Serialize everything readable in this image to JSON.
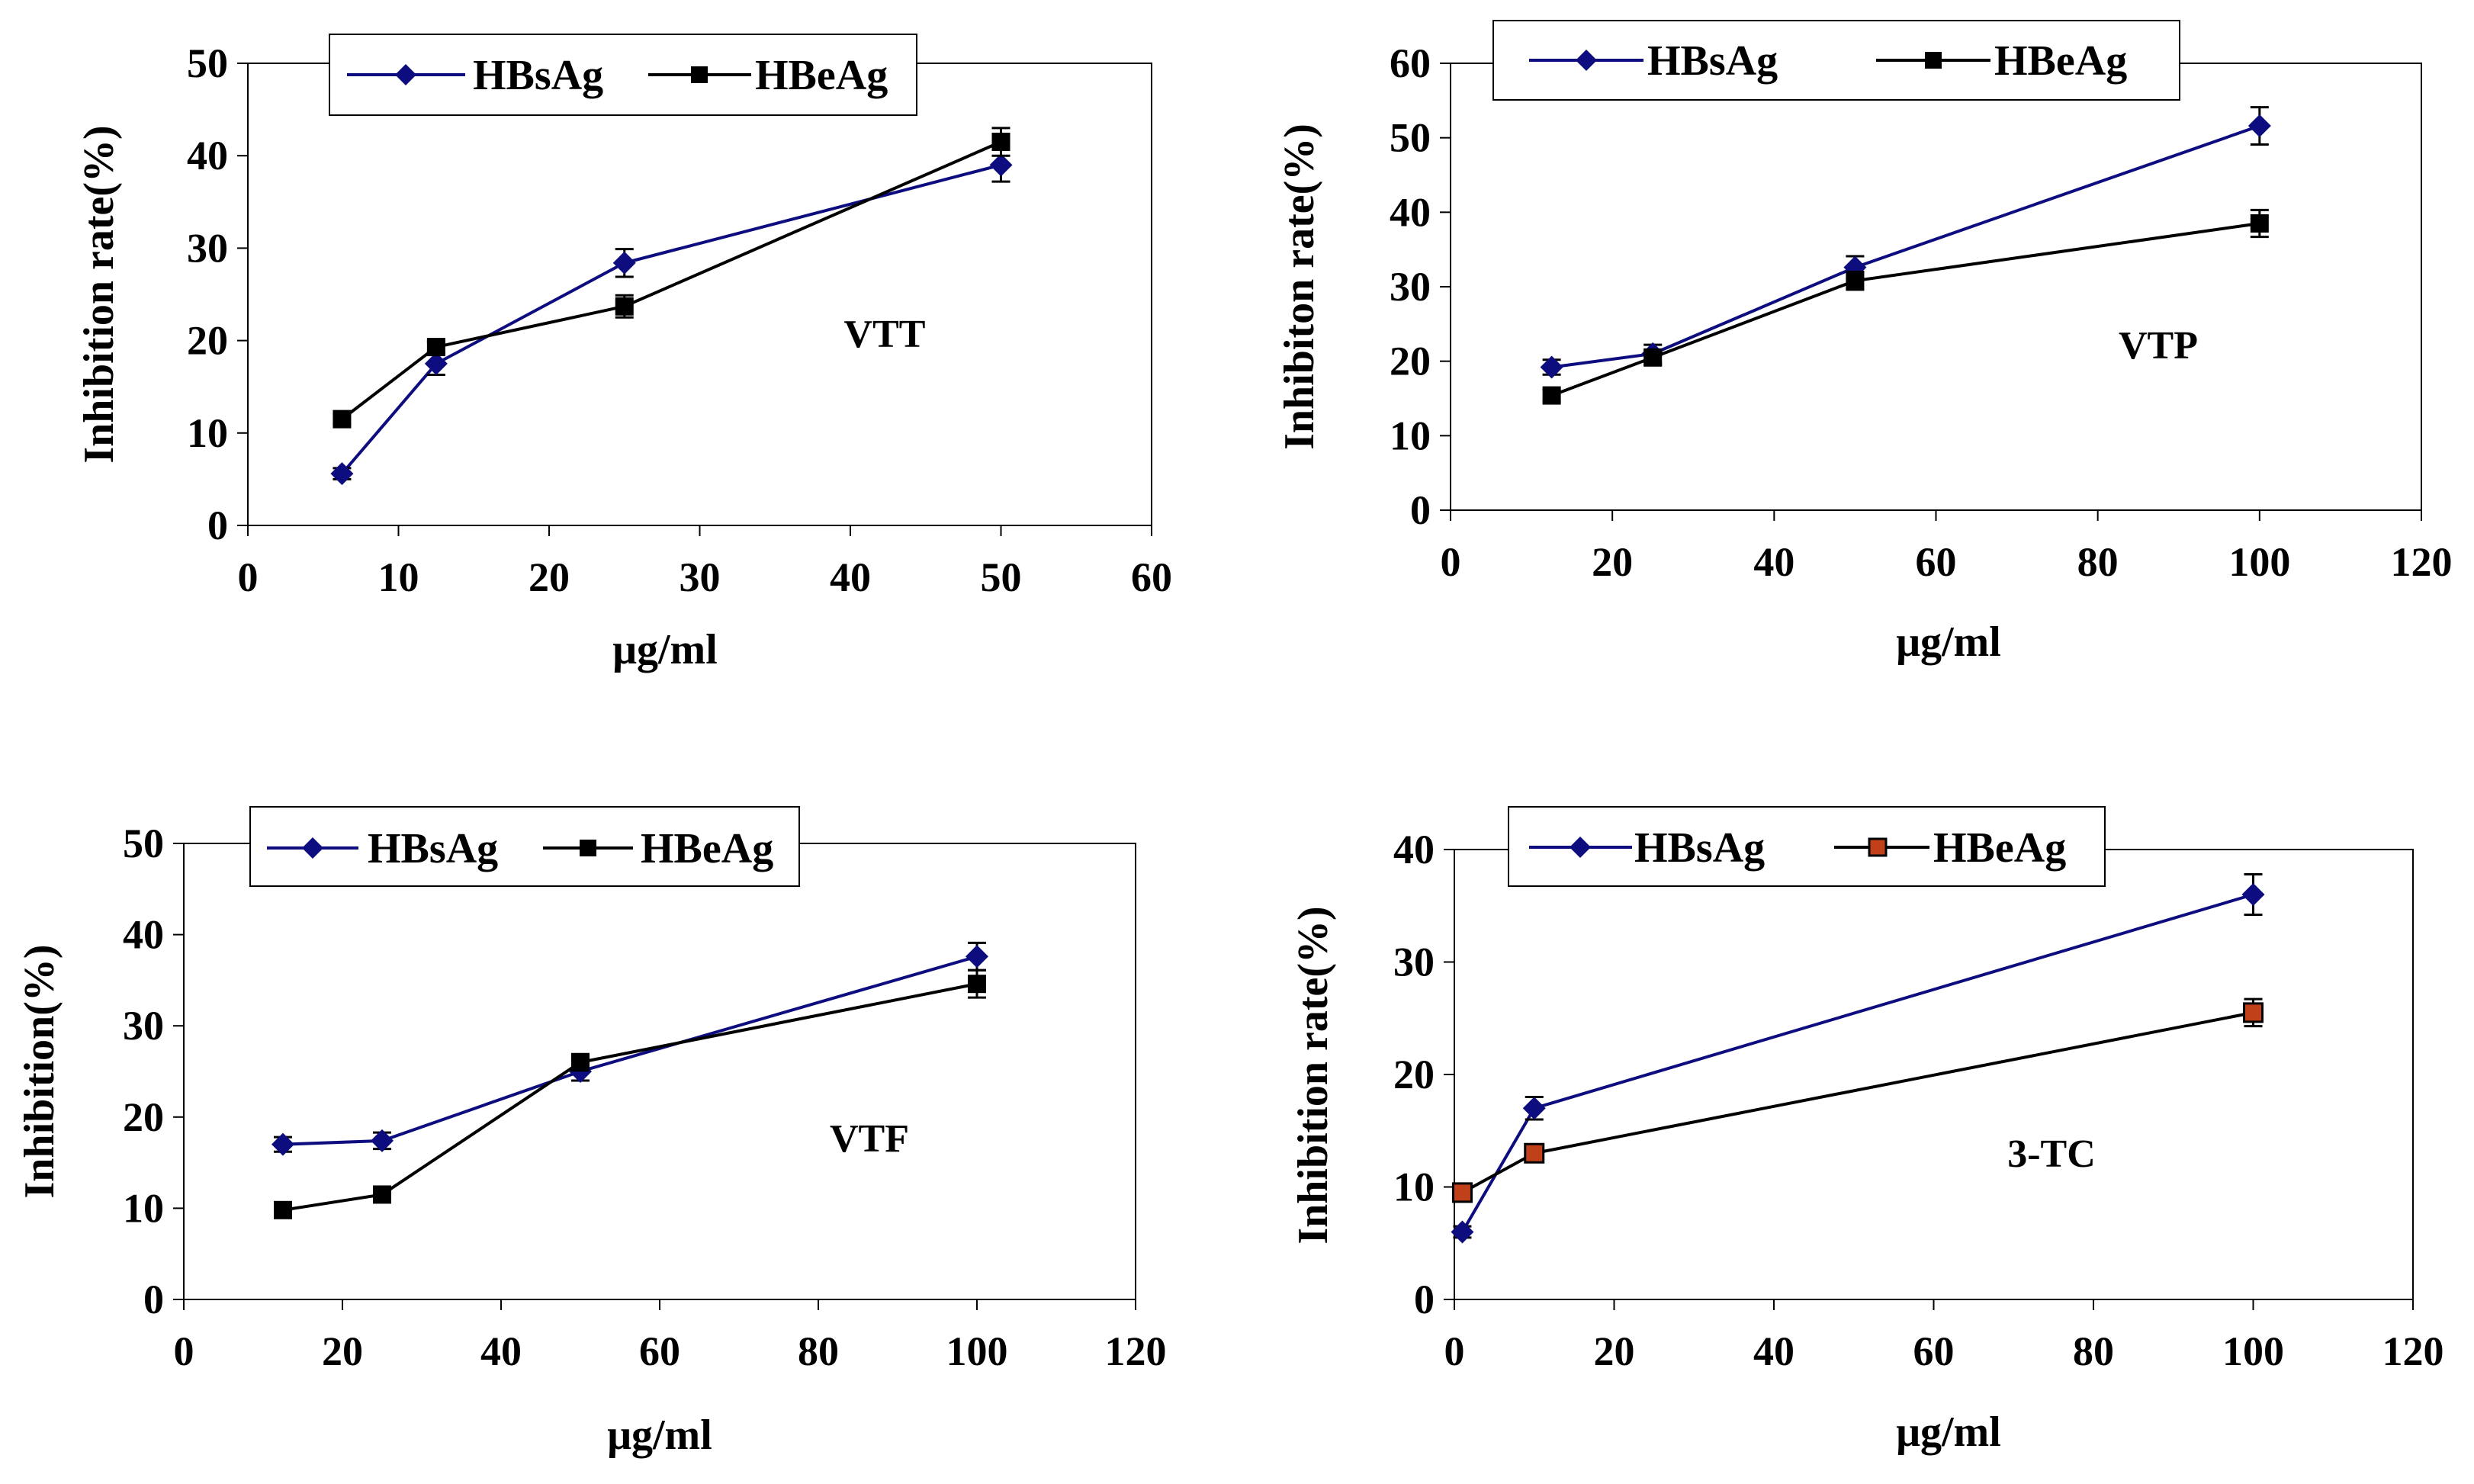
{
  "colors": {
    "hbsag": "#0d0d80",
    "hbeag": "#000000",
    "hbeag_fill_3tc": "#c0401a",
    "frame": "#000000"
  },
  "chart_data": [
    {
      "type": "line",
      "annotation": "VTT",
      "xlabel": "μg/ml",
      "ylabel": "Inhibition rate(%)",
      "xlim": [
        0,
        60
      ],
      "xticks": [
        0,
        10,
        20,
        30,
        40,
        50,
        60
      ],
      "ylim": [
        0,
        50
      ],
      "yticks": [
        0,
        10,
        20,
        30,
        40,
        50
      ],
      "legend": "top",
      "series": [
        {
          "name": "HBsAg",
          "marker": "diamond",
          "x": [
            6.25,
            12.5,
            25,
            50
          ],
          "y": [
            5.6,
            17.5,
            28.4,
            39.0
          ],
          "err": [
            0.6,
            1.2,
            1.5,
            1.8
          ]
        },
        {
          "name": "HBeAg",
          "marker": "square",
          "x": [
            6.25,
            12.5,
            25,
            50
          ],
          "y": [
            11.5,
            19.3,
            23.7,
            41.5
          ],
          "err": [
            0.5,
            0.6,
            1.2,
            1.5
          ]
        }
      ]
    },
    {
      "type": "line",
      "annotation": "VTP",
      "xlabel": "μg/ml",
      "ylabel": "Inhibiton rate(%)",
      "xlim": [
        0,
        120
      ],
      "xticks": [
        0,
        20,
        40,
        60,
        80,
        100,
        120
      ],
      "ylim": [
        0,
        60
      ],
      "yticks": [
        0,
        10,
        20,
        30,
        40,
        50,
        60
      ],
      "legend": "top",
      "series": [
        {
          "name": "HBsAg",
          "marker": "diamond",
          "x": [
            12.5,
            25,
            50,
            100
          ],
          "y": [
            19.2,
            21.0,
            32.6,
            51.6
          ],
          "err": [
            1.0,
            1.2,
            1.5,
            2.5
          ]
        },
        {
          "name": "HBeAg",
          "marker": "square",
          "x": [
            12.5,
            25,
            50,
            100
          ],
          "y": [
            15.4,
            20.5,
            30.8,
            38.5
          ],
          "err": [
            0.8,
            1.0,
            1.2,
            1.8
          ]
        }
      ]
    },
    {
      "type": "line",
      "annotation": "VTF",
      "xlabel": "μg/ml",
      "ylabel": "Inhibition(%)",
      "xlim": [
        0,
        120
      ],
      "xticks": [
        0,
        20,
        40,
        60,
        80,
        100,
        120
      ],
      "ylim": [
        0,
        50
      ],
      "yticks": [
        0,
        10,
        20,
        30,
        40,
        50
      ],
      "legend": "top",
      "series": [
        {
          "name": "HBsAg",
          "marker": "diamond",
          "x": [
            12.5,
            25,
            50,
            100
          ],
          "y": [
            17.0,
            17.4,
            25.0,
            37.6
          ],
          "err": [
            0.8,
            0.9,
            1.0,
            1.5
          ]
        },
        {
          "name": "HBeAg",
          "marker": "square",
          "x": [
            12.5,
            25,
            50,
            100
          ],
          "y": [
            9.8,
            11.5,
            26.0,
            34.6
          ],
          "err": [
            0.5,
            0.6,
            0.9,
            1.5
          ]
        }
      ]
    },
    {
      "type": "line",
      "annotation": "3-TC",
      "xlabel": "μg/ml",
      "ylabel": "Inhibition rate(%)",
      "xlim": [
        0,
        120
      ],
      "xticks": [
        0,
        20,
        40,
        60,
        80,
        100,
        120
      ],
      "ylim": [
        0,
        40
      ],
      "yticks": [
        0,
        10,
        20,
        30,
        40
      ],
      "legend": "top",
      "series": [
        {
          "name": "HBsAg",
          "marker": "diamond",
          "x": [
            1,
            10,
            100
          ],
          "y": [
            6.0,
            17.0,
            36.0
          ],
          "err": [
            0.5,
            1.0,
            1.8
          ]
        },
        {
          "name": "HBeAg",
          "marker": "square-orange",
          "x": [
            1,
            10,
            100
          ],
          "y": [
            9.5,
            13.0,
            25.5
          ],
          "err": [
            0.4,
            0.8,
            1.2
          ]
        }
      ]
    }
  ]
}
